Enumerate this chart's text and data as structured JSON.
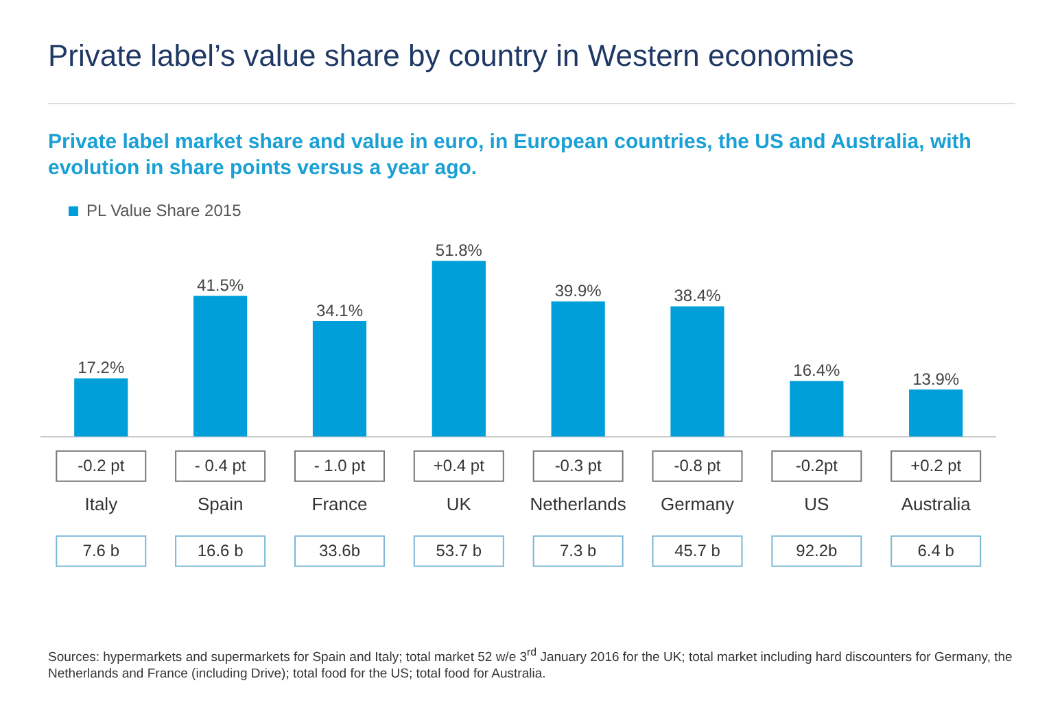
{
  "chart_data": {
    "type": "bar",
    "title": "Private label’s value share by country in Western economies",
    "subtitle": "Private label market share and value in euro, in European countries, the US and Australia, with evolution in share points versus a year ago.",
    "categories": [
      "Italy",
      "Spain",
      "France",
      "UK",
      "Netherlands",
      "Germany",
      "US",
      "Australia"
    ],
    "series": [
      {
        "name": "PL Value Share 2015",
        "color": "#009fda",
        "values": [
          17.2,
          41.5,
          34.1,
          51.8,
          39.9,
          38.4,
          16.4,
          13.9
        ],
        "value_labels": [
          "17.2%",
          "41.5%",
          "34.1%",
          "51.8%",
          "39.9%",
          "38.4%",
          "16.4%",
          "13.9%"
        ]
      }
    ],
    "legend": "top left",
    "grid": false,
    "annotations": [
      "-0.2 pt",
      "- 0.4 pt",
      "- 1.0 pt",
      "+0.4 pt",
      "-0.3 pt",
      "-0.8 pt",
      "-0.2pt",
      "+0.2 pt",
      "7.6 b",
      "16.6 b",
      "33.6b",
      "53.7 b",
      "7.3 b",
      "45.7 b",
      "92.2b",
      "6.4 b",
      "Sources: hypermarkets and supermarkets for Spain and Italy; total market 52 w/e 3$^{rd}$ January 2016 for the UK; total market including hard discounters for Germany, the Netherlands and France (including Drive); total food for the US; total food for Australia."
    ]
  }
}
